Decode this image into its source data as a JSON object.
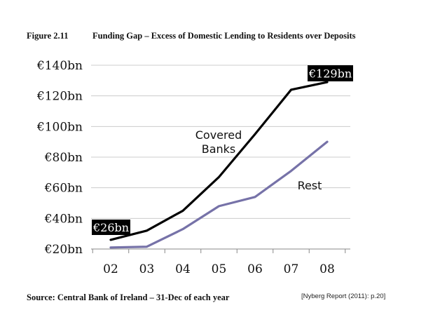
{
  "figure": {
    "number": "Figure 2.11",
    "title": "Funding Gap – Excess of Domestic Lending to Residents over Deposits"
  },
  "source": "Source: Central Bank of Ireland  – 31-Dec of each year",
  "citation": "[Nyberg Report (2011): p.20]",
  "colors": {
    "covered": "#000000",
    "rest": "#7672a8",
    "grid": "#cccccc",
    "callout_bg": "#000000"
  },
  "chart_data": {
    "type": "line",
    "title": "Funding Gap – Excess of Domestic Lending to Residents over Deposits",
    "xlabel": "",
    "ylabel": "",
    "categories": [
      "02",
      "03",
      "04",
      "05",
      "06",
      "07",
      "08"
    ],
    "y_ticks": [
      20,
      40,
      60,
      80,
      100,
      120,
      140
    ],
    "y_tick_labels": [
      "€20bn",
      "€40bn",
      "€60bn",
      "€80bn",
      "€100bn",
      "€120bn",
      "€140bn"
    ],
    "ylim": [
      20,
      140
    ],
    "grid": true,
    "series": [
      {
        "name": "Covered Banks",
        "label_lines": [
          "Covered",
          "Banks"
        ],
        "values": [
          26,
          32,
          45,
          67,
          95,
          124,
          129
        ]
      },
      {
        "name": "Rest",
        "label_lines": [
          "Rest"
        ],
        "values": [
          21,
          21.5,
          33,
          48,
          54,
          71,
          90
        ]
      }
    ],
    "annotations": [
      {
        "text": "€26bn",
        "series": "Covered Banks",
        "category": "02"
      },
      {
        "text": "€129bn",
        "series": "Covered Banks",
        "category": "08"
      }
    ]
  }
}
